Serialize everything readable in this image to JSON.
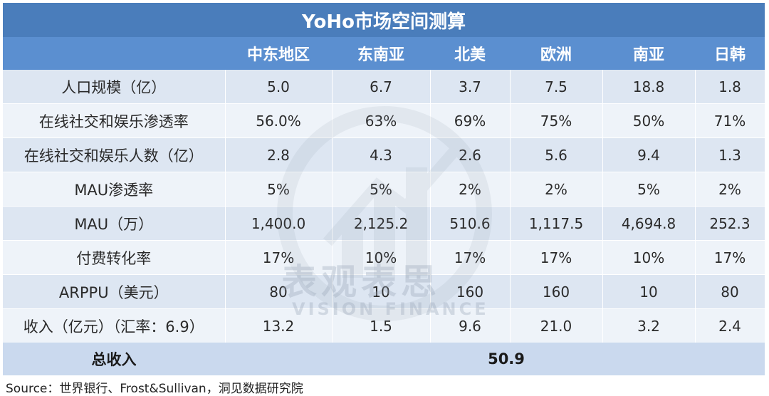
{
  "title": "YoHo市场空间测算",
  "columns": [
    "中东地区",
    "东南亚",
    "北美",
    "欧洲",
    "南亚",
    "日韩"
  ],
  "rows": [
    {
      "label": "人口规模（亿）",
      "values": [
        "5.0",
        "6.7",
        "3.7",
        "7.5",
        "18.8",
        "1.8"
      ]
    },
    {
      "label": "在线社交和娱乐渗透率",
      "values": [
        "56.0%",
        "63%",
        "69%",
        "75%",
        "50%",
        "71%"
      ]
    },
    {
      "label": "在线社交和娱乐人数（亿）",
      "values": [
        "2.8",
        "4.3",
        "2.6",
        "5.6",
        "9.4",
        "1.3"
      ]
    },
    {
      "label": "MAU渗透率",
      "values": [
        "5%",
        "5%",
        "2%",
        "2%",
        "5%",
        "2%"
      ]
    },
    {
      "label": "MAU（万）",
      "values": [
        "1,400.0",
        "2,125.2",
        "510.6",
        "1,117.5",
        "4,694.8",
        "252.3"
      ]
    },
    {
      "label": "付费转化率",
      "values": [
        "17%",
        "10%",
        "17%",
        "17%",
        "10%",
        "17%"
      ]
    },
    {
      "label": "ARPPU（美元）",
      "values": [
        "80",
        "10",
        "160",
        "160",
        "10",
        "80"
      ]
    },
    {
      "label": "收入（亿元）（汇率：6.9）",
      "values": [
        "13.2",
        "1.5",
        "9.6",
        "21.0",
        "3.2",
        "2.4"
      ]
    }
  ],
  "total": {
    "label": "总收入",
    "value": "50.9"
  },
  "source": "Source：世界银行、Frost&Sullivan，洞见数据研究院",
  "watermark": {
    "cn": "表观表思",
    "en": "VISION FINANCE"
  },
  "colors": {
    "title_bg": "#4a7dbb",
    "header_bg": "#5b8fd0",
    "row_odd": "#dde6f2",
    "row_even": "#eef3f9",
    "total_bg": "#cad9ee"
  }
}
